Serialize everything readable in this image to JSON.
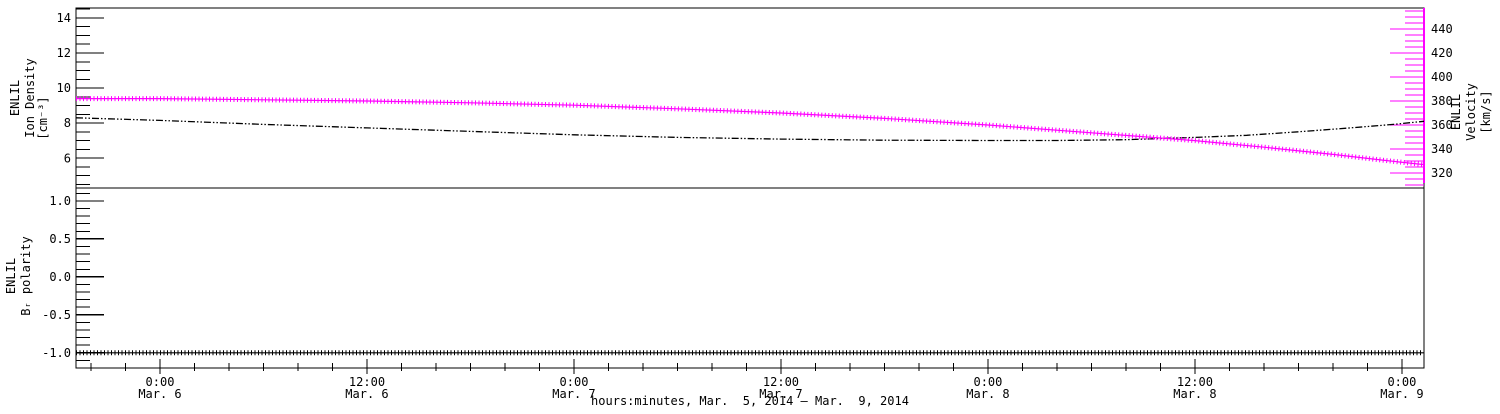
{
  "figure": {
    "background": "#ffffff",
    "axis_color": "#000000",
    "velocity_color": "#ff00ff",
    "x_axis_title": "hours:minutes, Mar.  5, 2014 – Mar.  9, 2014"
  },
  "chart_data": [
    {
      "type": "line",
      "panel": "top",
      "xlim": [
        -4.87,
        73.28
      ],
      "x_minor_step_hours": 2,
      "x_major_hours": [
        0,
        12,
        24,
        36,
        48,
        60,
        72
      ],
      "left_axis": {
        "label_lines": [
          "ENLIL",
          "Ion Density"
        ],
        "unit": "[cm⁻³]",
        "ylim": [
          4.29,
          14.57
        ],
        "major_values": [
          6,
          8,
          10,
          12,
          14
        ],
        "major_labels": [
          "6",
          "8",
          "10",
          "12",
          "14"
        ],
        "minor_step": 0.5,
        "color": "#000000"
      },
      "right_axis": {
        "label_lines": [
          "ENLIL",
          "Velocity",
          "[km/s]"
        ],
        "label_color": "#000000",
        "ylim": [
          307.5,
          457.5
        ],
        "major_values": [
          320,
          340,
          360,
          380,
          400,
          420,
          440
        ],
        "major_labels": [
          "320",
          "340",
          "360",
          "380",
          "400",
          "420",
          "440"
        ],
        "minor_step": 5,
        "color": "#ff00ff"
      },
      "series": [
        {
          "name": "ion_density",
          "axis": "left",
          "color": "#000000",
          "style": "dashdot",
          "x": [
            -4.87,
            0,
            6,
            12,
            18,
            24,
            30,
            36,
            42,
            48,
            52,
            56,
            60,
            63,
            66,
            69,
            71.5,
            73.28
          ],
          "y": [
            8.3,
            8.15,
            7.92,
            7.72,
            7.52,
            7.33,
            7.18,
            7.08,
            7.02,
            7.0,
            7.0,
            7.05,
            7.18,
            7.3,
            7.5,
            7.72,
            7.92,
            8.1
          ]
        },
        {
          "name": "velocity",
          "axis": "right",
          "color": "#ff00ff",
          "style": "plus",
          "x": [
            -4.87,
            0,
            6,
            12,
            18,
            24,
            30,
            36,
            42,
            48,
            54,
            60,
            64,
            68,
            71,
            73.28
          ],
          "y": [
            382,
            382,
            381,
            380,
            378.5,
            376.5,
            373.5,
            370,
            365.5,
            360,
            353.5,
            347,
            341.5,
            335.5,
            330.5,
            327
          ]
        }
      ]
    },
    {
      "type": "line",
      "panel": "bottom",
      "xlabel": "hours:minutes, Mar.  5, 2014 – Mar.  9, 2014",
      "xlim": [
        -4.87,
        73.28
      ],
      "x_minor_step_hours": 2,
      "x_major_hours": [
        0,
        12,
        24,
        36,
        48,
        60,
        72
      ],
      "x_major_labels": [
        [
          "0:00",
          "Mar. 6"
        ],
        [
          "12:00",
          "Mar. 6"
        ],
        [
          "0:00",
          "Mar. 7"
        ],
        [
          "12:00",
          "Mar. 7"
        ],
        [
          "0:00",
          "Mar. 8"
        ],
        [
          "12:00",
          "Mar. 8"
        ],
        [
          "0:00",
          "Mar. 9"
        ]
      ],
      "left_axis": {
        "label_lines": [
          "ENLIL",
          "Bᵣ polarity"
        ],
        "ylim": [
          -1.2,
          1.17
        ],
        "major_values": [
          -1.0,
          -0.5,
          0.0,
          0.5,
          1.0
        ],
        "major_labels": [
          "-1.0",
          "-0.5",
          "0.0",
          "0.5",
          "1.0"
        ],
        "minor_step": 0.1,
        "color": "#000000"
      },
      "series": [
        {
          "name": "br_polarity",
          "axis": "left",
          "color": "#000000",
          "style": "plus",
          "x": [
            -4.87,
            73.28
          ],
          "y": [
            -1.0,
            -1.0
          ]
        }
      ]
    }
  ]
}
